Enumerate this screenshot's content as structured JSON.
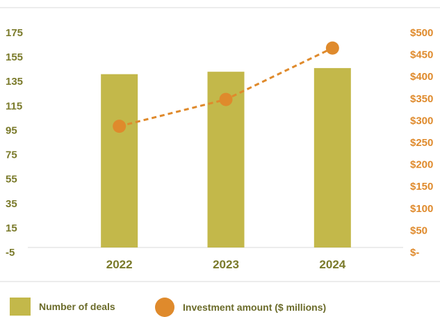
{
  "chart_data": {
    "type": "bar+line",
    "categories": [
      "2022",
      "2023",
      "2024"
    ],
    "series": [
      {
        "name": "Number of deals",
        "type": "bar",
        "axis": "left",
        "values": [
          141,
          143,
          146
        ]
      },
      {
        "name": "Investment amount ($ millions)",
        "type": "line",
        "axis": "right",
        "values": [
          287,
          348,
          465
        ]
      }
    ],
    "left_axis": {
      "ylim": [
        -5,
        175
      ],
      "ticks": [
        -5,
        15,
        35,
        55,
        75,
        95,
        115,
        135,
        155,
        175
      ],
      "tick_labels": [
        "-5",
        "15",
        "35",
        "55",
        "75",
        "95",
        "115",
        "135",
        "155",
        "175"
      ]
    },
    "right_axis": {
      "ylim": [
        0,
        500
      ],
      "ticks": [
        0,
        50,
        100,
        150,
        200,
        250,
        300,
        350,
        400,
        450,
        500
      ],
      "tick_labels": [
        "$-",
        "$50",
        "$100",
        "$150",
        "$200",
        "$250",
        "$300",
        "$350",
        "$400",
        "$450",
        "$500"
      ]
    },
    "legend_position": "bottom",
    "grid": false
  },
  "legend": {
    "bar_label": "Number of deals",
    "line_label": "Investment amount ($ millions)"
  },
  "colors": {
    "bar": "#c3b84a",
    "line": "#df8a2c",
    "left_axis_text": "#7a7a2a",
    "right_axis_text": "#df8a2c",
    "rule": "#d9d9d9"
  }
}
